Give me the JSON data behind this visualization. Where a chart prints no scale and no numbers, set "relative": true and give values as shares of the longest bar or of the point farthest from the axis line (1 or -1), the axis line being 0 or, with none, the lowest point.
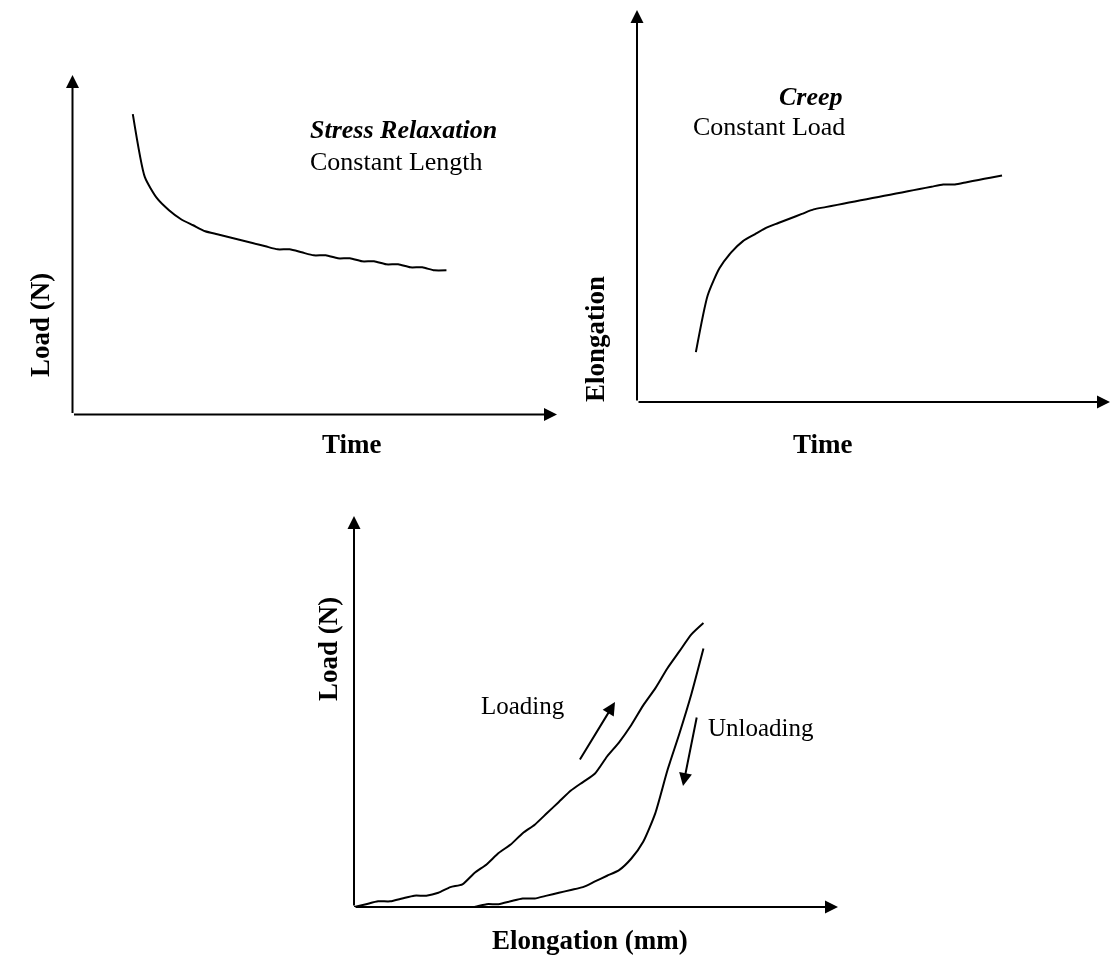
{
  "chart_data": [
    {
      "type": "line",
      "relative": true,
      "title": "Stress Relaxation",
      "subtitle": "Constant Length",
      "xlabel": "Time",
      "ylabel": "Load (N)",
      "color": "#000000",
      "categories": [
        null,
        null,
        null,
        null,
        null,
        null,
        null,
        null,
        null,
        null,
        null,
        null,
        null,
        null,
        null,
        null,
        null,
        null,
        null,
        null,
        null,
        null,
        null,
        null,
        null,
        null,
        null,
        null,
        null,
        null,
        null,
        null,
        null,
        null,
        null,
        null,
        null,
        null,
        null,
        null,
        null
      ],
      "values": [
        null,
        null,
        null,
        null,
        null,
        1.0,
        0.79,
        0.72,
        0.68,
        0.65,
        0.63,
        0.61,
        0.6,
        0.59,
        0.58,
        0.57,
        0.56,
        0.55,
        0.55,
        0.54,
        0.53,
        0.53,
        0.52,
        0.52,
        0.51,
        0.51,
        0.5,
        0.5,
        0.49,
        0.49,
        0.48,
        0.48,
        null,
        null,
        null,
        null,
        null,
        null,
        null,
        null,
        null
      ]
    },
    {
      "type": "line",
      "relative": true,
      "title": "Creep",
      "subtitle": "Constant Load",
      "xlabel": "Time",
      "ylabel": "Elongation",
      "color": "#000000",
      "categories": [
        null,
        null,
        null,
        null,
        null,
        null,
        null,
        null,
        null,
        null,
        null,
        null,
        null,
        null,
        null,
        null,
        null,
        null,
        null,
        null,
        null,
        null,
        null,
        null,
        null,
        null,
        null,
        null,
        null,
        null,
        null,
        null,
        null,
        null,
        null,
        null,
        null,
        null,
        null,
        null,
        null
      ],
      "values": [
        null,
        null,
        null,
        null,
        null,
        0.22,
        0.47,
        0.59,
        0.66,
        0.71,
        0.74,
        0.77,
        0.79,
        0.81,
        0.83,
        0.85,
        0.86,
        0.87,
        0.88,
        0.89,
        0.9,
        0.91,
        0.92,
        0.93,
        0.94,
        0.95,
        0.96,
        0.96,
        0.97,
        0.98,
        0.99,
        1.0,
        null,
        null,
        null,
        null,
        null,
        null,
        null,
        null,
        null
      ]
    },
    {
      "type": "line",
      "relative": true,
      "xlabel": "Elongation (mm)",
      "ylabel": "Load (N)",
      "annotations": [
        "Loading",
        "Unloading"
      ],
      "categories": [
        null,
        null,
        null,
        null,
        null,
        null,
        null,
        null,
        null,
        null,
        null,
        null,
        null,
        null,
        null,
        null,
        null,
        null,
        null,
        null,
        null,
        null,
        null,
        null,
        null,
        null,
        null,
        null,
        null,
        null,
        null,
        null,
        null,
        null,
        null,
        null,
        null,
        null,
        null,
        null,
        null
      ],
      "series": [
        {
          "color": "#000000",
          "values": [
            0,
            0.01,
            0.02,
            0.02,
            0.03,
            0.04,
            0.04,
            0.05,
            0.07,
            0.08,
            0.12,
            0.15,
            0.19,
            0.22,
            0.26,
            0.29,
            0.33,
            0.37,
            0.41,
            0.44,
            0.47,
            0.53,
            0.58,
            0.64,
            0.71,
            0.77,
            0.84,
            0.9,
            0.96,
            1.0,
            null,
            null,
            null,
            null,
            null,
            null,
            null,
            null,
            null,
            null,
            null
          ]
        },
        {
          "color": "#000000",
          "values": [
            null,
            null,
            null,
            null,
            null,
            null,
            null,
            null,
            0,
            0,
            0,
            0.01,
            0.01,
            0.02,
            0.03,
            0.03,
            0.04,
            0.05,
            0.06,
            0.07,
            0.09,
            0.11,
            0.13,
            0.17,
            0.23,
            0.33,
            0.48,
            0.61,
            0.75,
            0.91,
            null,
            null,
            null,
            null,
            null,
            null,
            null,
            null,
            null,
            null,
            null
          ]
        }
      ]
    }
  ]
}
